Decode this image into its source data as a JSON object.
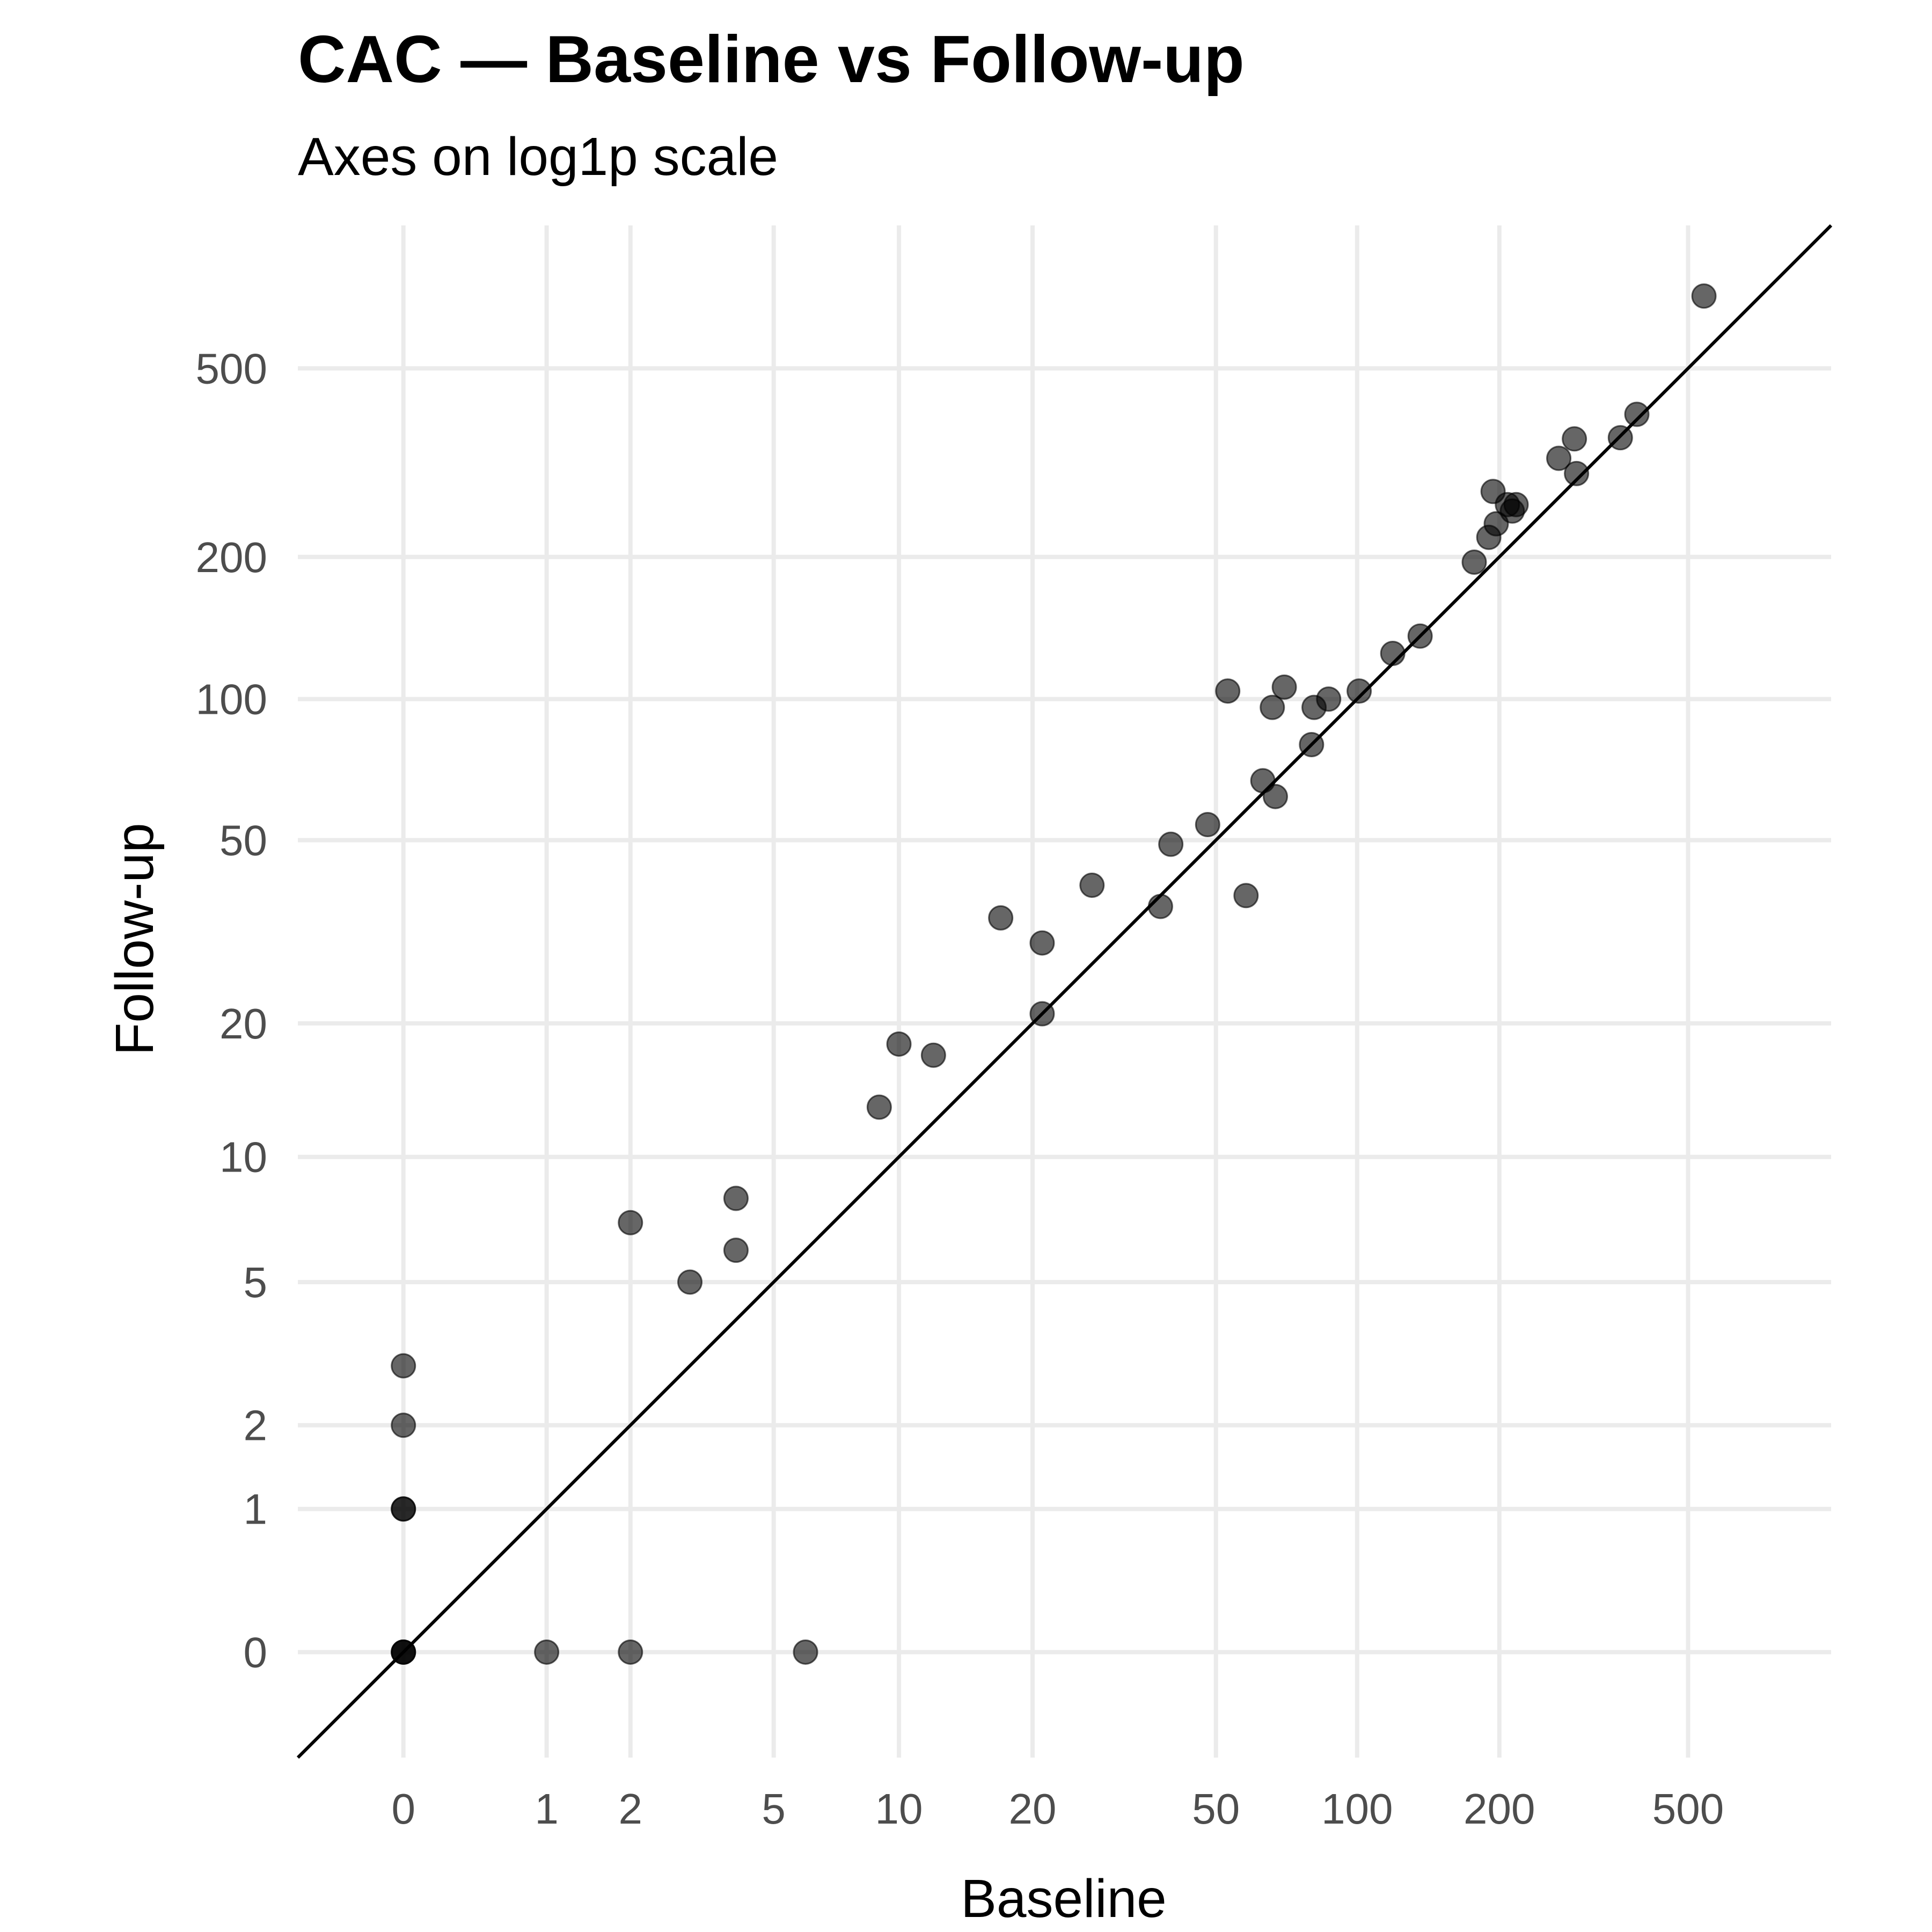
{
  "chart_data": {
    "type": "scatter",
    "title": "CAC — Baseline vs Follow-up",
    "subtitle": "Axes on log1p scale",
    "xlabel": "Baseline",
    "ylabel": "Follow-up",
    "x_scale": "log1p",
    "y_scale": "log1p",
    "xlim": [
      -0.4,
      1000
    ],
    "ylim": [
      -0.4,
      1000
    ],
    "x_ticks": [
      0,
      1,
      2,
      5,
      10,
      20,
      50,
      100,
      200,
      500
    ],
    "y_ticks": [
      0,
      1,
      2,
      5,
      10,
      20,
      50,
      100,
      200,
      500
    ],
    "x_tick_labels": [
      "0",
      "1",
      "2",
      "5",
      "10",
      "20",
      "50",
      "100",
      "200",
      "500"
    ],
    "y_tick_labels": [
      "0",
      "1",
      "2",
      "5",
      "10",
      "20",
      "50",
      "100",
      "200",
      "500"
    ],
    "grid": true,
    "reference_line": "y = x",
    "points": [
      [
        0,
        0
      ],
      [
        0,
        0
      ],
      [
        0,
        0
      ],
      [
        0,
        1
      ],
      [
        0,
        1
      ],
      [
        0,
        2
      ],
      [
        0,
        3
      ],
      [
        1,
        0
      ],
      [
        2,
        0
      ],
      [
        6,
        0
      ],
      [
        2,
        7
      ],
      [
        3,
        5
      ],
      [
        4,
        8
      ],
      [
        4,
        6
      ],
      [
        9,
        13
      ],
      [
        10,
        18
      ],
      [
        12,
        17
      ],
      [
        17,
        34
      ],
      [
        21,
        30
      ],
      [
        21,
        21
      ],
      [
        27,
        40
      ],
      [
        38,
        36
      ],
      [
        40,
        49
      ],
      [
        48,
        54
      ],
      [
        53,
        104
      ],
      [
        58,
        38
      ],
      [
        63,
        67
      ],
      [
        66,
        96
      ],
      [
        67,
        62
      ],
      [
        70,
        106
      ],
      [
        80,
        80
      ],
      [
        81,
        96
      ],
      [
        87,
        100
      ],
      [
        101,
        104
      ],
      [
        119,
        125
      ],
      [
        136,
        136
      ],
      [
        177,
        195
      ],
      [
        190,
        220
      ],
      [
        194,
        275
      ],
      [
        197,
        235
      ],
      [
        208,
        258
      ],
      [
        213,
        250
      ],
      [
        217,
        258
      ],
      [
        267,
        323
      ],
      [
        288,
        355
      ],
      [
        291,
        300
      ],
      [
        360,
        357
      ],
      [
        390,
        400
      ],
      [
        540,
        710
      ]
    ]
  }
}
